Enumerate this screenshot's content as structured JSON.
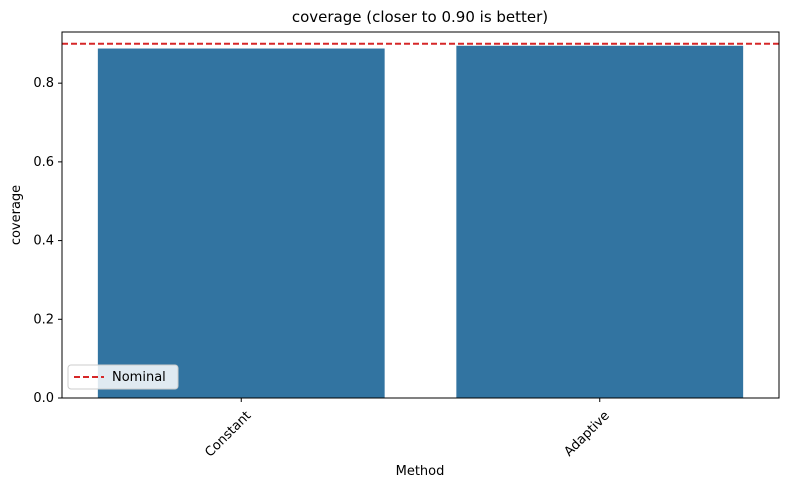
{
  "chart_data": {
    "type": "bar",
    "title": "coverage (closer to 0.90 is better)",
    "xlabel": "Method",
    "ylabel": "coverage",
    "categories": [
      "Constant",
      "Adaptive"
    ],
    "values": [
      0.888,
      0.895
    ],
    "ylim": [
      0,
      0.93
    ],
    "yticks": [
      "0.0",
      "0.2",
      "0.4",
      "0.6",
      "0.8"
    ],
    "reference_line": {
      "label": "Nominal",
      "value": 0.9,
      "color": "#d62728",
      "style": "dashed"
    },
    "bar_color": "#3274a1",
    "grid": false,
    "legend_position": "lower-left"
  }
}
